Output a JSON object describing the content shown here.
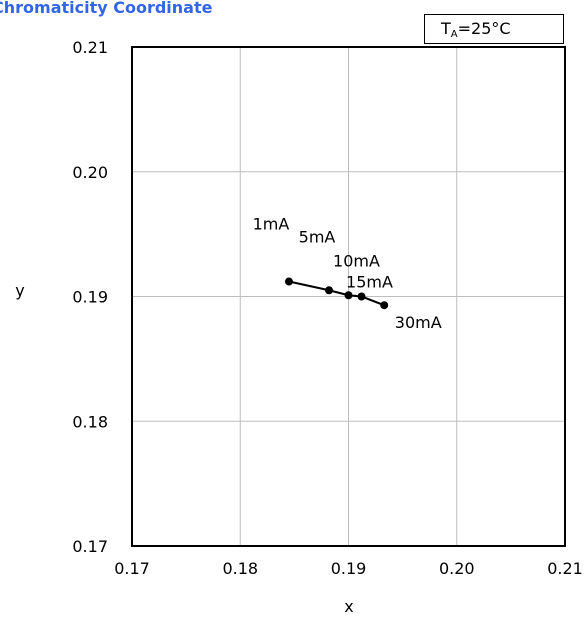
{
  "title": "Chromaticity Coordinate",
  "condition": {
    "symbol": "T",
    "subscript": "A",
    "rest": "=25°C"
  },
  "chart_data": {
    "type": "line",
    "title": "Chromaticity Coordinate",
    "xlabel": "x",
    "ylabel": "y",
    "xlim": [
      0.17,
      0.21
    ],
    "ylim": [
      0.17,
      0.21
    ],
    "xticks": [
      "0.17",
      "0.18",
      "0.19",
      "0.20",
      "0.21"
    ],
    "yticks": [
      "0.17",
      "0.18",
      "0.19",
      "0.20",
      "0.21"
    ],
    "grid": true,
    "series": [
      {
        "points": [
          {
            "x": 0.1845,
            "y": 0.1912,
            "label": "1mA"
          },
          {
            "x": 0.1882,
            "y": 0.1905,
            "label": "5mA"
          },
          {
            "x": 0.19,
            "y": 0.1901,
            "label": "10mA"
          },
          {
            "x": 0.1912,
            "y": 0.19,
            "label": "15mA"
          },
          {
            "x": 0.1933,
            "y": 0.1893,
            "label": "30mA"
          }
        ]
      }
    ]
  }
}
